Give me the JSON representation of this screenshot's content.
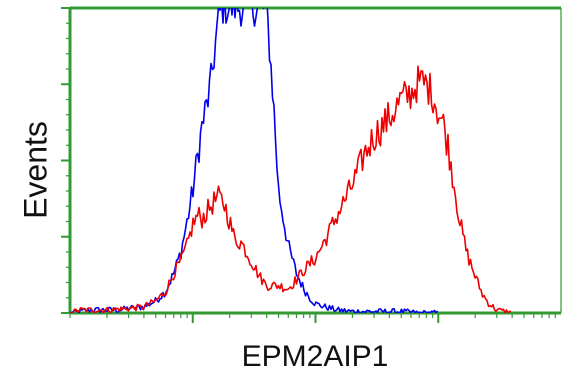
{
  "chart_data": {
    "type": "line",
    "title": "",
    "xlabel": "EPM2AIP1",
    "ylabel": "Events",
    "xscale": "log",
    "xlim": [
      1,
      10000
    ],
    "ylim": [
      0,
      100
    ],
    "grid": false,
    "legend": "none",
    "axis_color": "#339933",
    "series": [
      {
        "color": "#0000ee",
        "x": [
          1,
          1.2,
          1.5,
          2,
          2.5,
          3,
          4,
          5,
          6,
          7,
          8,
          9,
          10,
          11,
          12,
          13,
          14,
          15,
          16,
          17,
          18,
          19,
          20,
          21,
          22,
          23,
          24,
          25,
          26,
          27,
          28,
          30,
          32,
          35,
          40,
          45,
          50,
          60,
          70,
          80,
          90,
          100,
          120,
          150,
          200,
          300,
          500,
          700,
          1000
        ],
        "y": [
          0,
          0.5,
          1,
          1,
          1,
          1.5,
          2,
          4,
          7,
          13,
          20,
          30,
          40,
          52,
          62,
          68,
          75,
          85,
          95,
          100,
          100,
          100,
          100,
          100,
          100,
          100,
          100,
          100,
          100,
          100,
          100,
          100,
          100,
          100,
          100,
          72,
          40,
          22,
          13,
          8,
          5,
          3,
          2,
          1,
          0.5,
          0.5,
          0.5,
          0,
          0
        ]
      },
      {
        "color": "#ee0000",
        "x": [
          1,
          1.2,
          1.5,
          2,
          3,
          4,
          5,
          6,
          7,
          8,
          9,
          10,
          11,
          12,
          14,
          16,
          18,
          20,
          22,
          25,
          30,
          35,
          40,
          50,
          60,
          70,
          80,
          100,
          120,
          150,
          200,
          250,
          300,
          400,
          500,
          600,
          700,
          800,
          900,
          1000,
          1100,
          1200,
          1300,
          1400,
          1500,
          1700,
          2000,
          2300,
          2600,
          3000,
          3500,
          4000
        ],
        "y": [
          0,
          1,
          1,
          1,
          1.5,
          2,
          4,
          7,
          13,
          17,
          22,
          29,
          32,
          31,
          35,
          38,
          36,
          30,
          24,
          23,
          17,
          12,
          9,
          9,
          8,
          11,
          14,
          18,
          24,
          32,
          42,
          52,
          58,
          64,
          70,
          72,
          76,
          75,
          72,
          66,
          62,
          55,
          46,
          38,
          30,
          20,
          12,
          6,
          3,
          1,
          0.5,
          0
        ]
      }
    ]
  }
}
